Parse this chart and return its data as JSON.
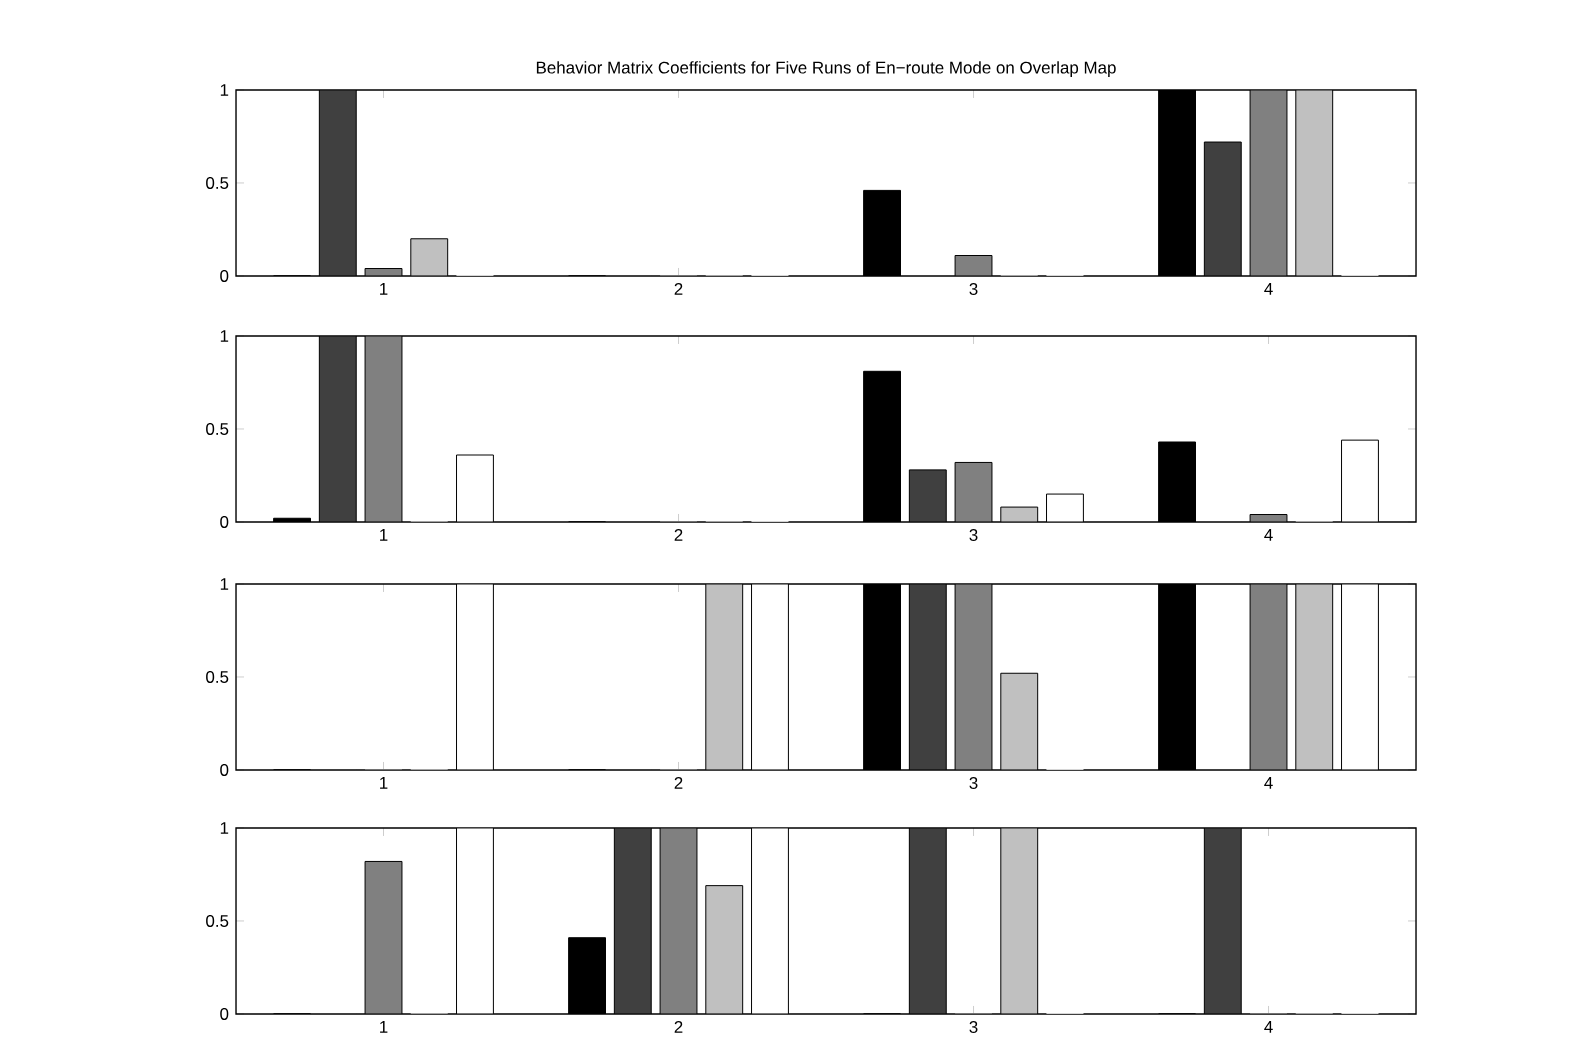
{
  "chart_data": [
    {
      "type": "bar",
      "title": "Behavior Matrix Coefficients for Five Runs of En−route Mode on Overlap Map",
      "x": [
        1,
        2,
        3,
        4
      ],
      "xlim": [
        0.5,
        4.5
      ],
      "xticks": [
        1,
        2,
        3,
        4
      ],
      "ylim": [
        0,
        1
      ],
      "yticks": [
        0,
        0.5,
        1
      ],
      "series": [
        {
          "color": "#000000",
          "values": [
            0,
            0,
            0.46,
            1
          ]
        },
        {
          "color": "#404040",
          "values": [
            1,
            0,
            0,
            0.72
          ]
        },
        {
          "color": "#808080",
          "values": [
            0.04,
            0,
            0.11,
            1
          ]
        },
        {
          "color": "#c0c0c0",
          "values": [
            0.2,
            0,
            0,
            1
          ]
        },
        {
          "color": "#ffffff",
          "values": [
            0,
            0,
            0,
            0
          ]
        }
      ]
    },
    {
      "type": "bar",
      "x": [
        1,
        2,
        3,
        4
      ],
      "xlim": [
        0.5,
        4.5
      ],
      "xticks": [
        1,
        2,
        3,
        4
      ],
      "ylim": [
        0,
        1
      ],
      "yticks": [
        0,
        0.5,
        1
      ],
      "series": [
        {
          "color": "#000000",
          "values": [
            0.02,
            0,
            0.81,
            0.43
          ]
        },
        {
          "color": "#404040",
          "values": [
            1,
            0,
            0.28,
            0
          ]
        },
        {
          "color": "#808080",
          "values": [
            1,
            0,
            0.32,
            0.04
          ]
        },
        {
          "color": "#c0c0c0",
          "values": [
            0,
            0,
            0.08,
            0
          ]
        },
        {
          "color": "#ffffff",
          "values": [
            0.36,
            0,
            0.15,
            0.44
          ]
        }
      ]
    },
    {
      "type": "bar",
      "x": [
        1,
        2,
        3,
        4
      ],
      "xlim": [
        0.5,
        4.5
      ],
      "xticks": [
        1,
        2,
        3,
        4
      ],
      "ylim": [
        0,
        1
      ],
      "yticks": [
        0,
        0.5,
        1
      ],
      "series": [
        {
          "color": "#000000",
          "values": [
            0,
            0,
            1,
            1
          ]
        },
        {
          "color": "#404040",
          "values": [
            0,
            0,
            1,
            0
          ]
        },
        {
          "color": "#808080",
          "values": [
            0,
            0,
            1,
            1
          ]
        },
        {
          "color": "#c0c0c0",
          "values": [
            0,
            1,
            0.52,
            1
          ]
        },
        {
          "color": "#ffffff",
          "values": [
            1,
            1,
            0,
            1
          ]
        }
      ]
    },
    {
      "type": "bar",
      "x": [
        1,
        2,
        3,
        4
      ],
      "xlim": [
        0.5,
        4.5
      ],
      "xticks": [
        1,
        2,
        3,
        4
      ],
      "ylim": [
        0,
        1
      ],
      "yticks": [
        0,
        0.5,
        1
      ],
      "series": [
        {
          "color": "#000000",
          "values": [
            0,
            0.41,
            0,
            0
          ]
        },
        {
          "color": "#404040",
          "values": [
            0,
            1,
            1,
            1
          ]
        },
        {
          "color": "#808080",
          "values": [
            0.82,
            1,
            0,
            0
          ]
        },
        {
          "color": "#c0c0c0",
          "values": [
            0,
            0.69,
            1,
            0
          ]
        },
        {
          "color": "#ffffff",
          "values": [
            1,
            1,
            0,
            0
          ]
        }
      ]
    }
  ]
}
